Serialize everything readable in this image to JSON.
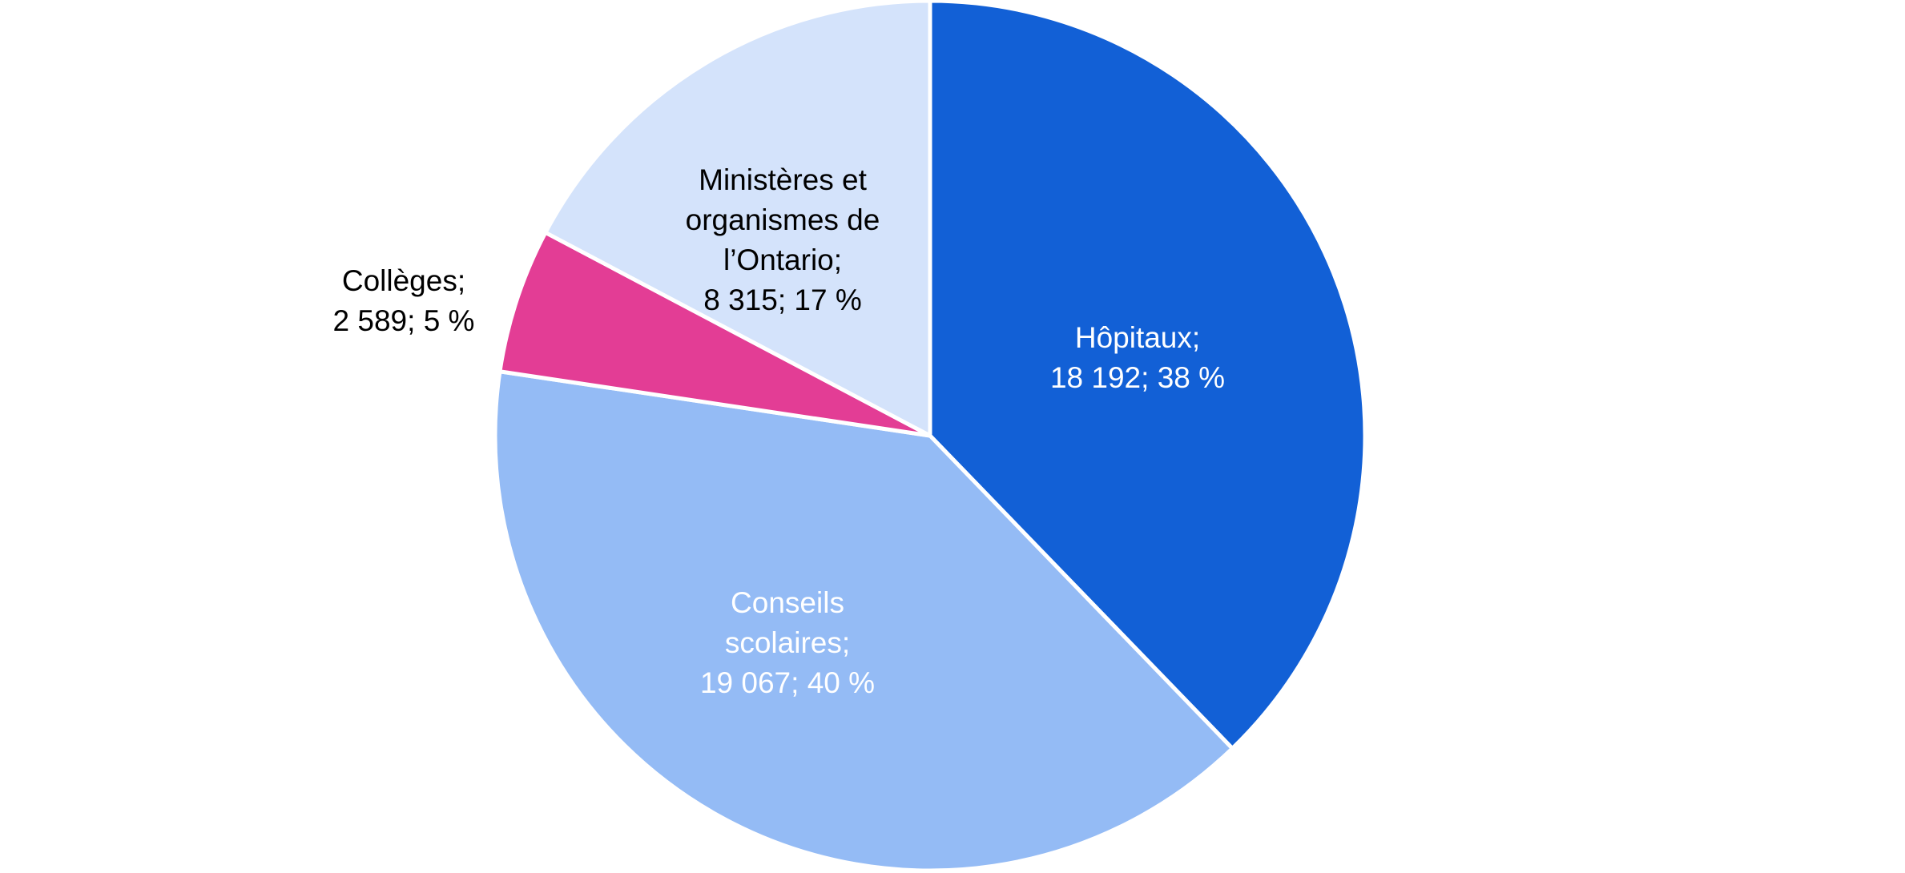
{
  "chart_data": {
    "type": "pie",
    "categories": [
      "Hôpitaux;",
      "Conseils scolaires;",
      "Collèges;",
      "Ministères et organismes de l’Ontario;"
    ],
    "values": [
      18192,
      19067,
      2589,
      8315
    ],
    "value_labels": [
      "18 192; 38 %",
      "19 067; 40 %",
      "2 589; 5 %",
      "8 315; 17 %"
    ],
    "colors": [
      "#1260d6",
      "#94bbf5",
      "#e33d95",
      "#d4e3fb"
    ]
  }
}
